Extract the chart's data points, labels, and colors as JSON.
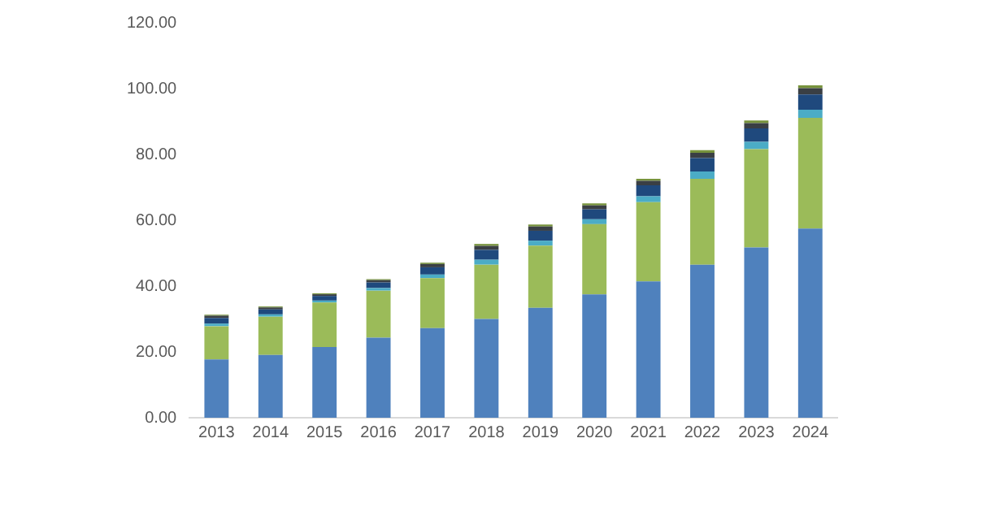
{
  "chart_data": {
    "type": "bar",
    "stacked": true,
    "categories": [
      "2013",
      "2014",
      "2015",
      "2016",
      "2017",
      "2018",
      "2019",
      "2020",
      "2021",
      "2022",
      "2023",
      "2024"
    ],
    "ylim": [
      0,
      120
    ],
    "yticks": [
      {
        "value": 0,
        "label": "0.00"
      },
      {
        "value": 20,
        "label": "20.00"
      },
      {
        "value": 40,
        "label": "40.00"
      },
      {
        "value": 60,
        "label": "60.00"
      },
      {
        "value": 80,
        "label": "80.00"
      },
      {
        "value": 100,
        "label": "100.00"
      },
      {
        "value": 120,
        "label": "120.00"
      }
    ],
    "grid": false,
    "legend": false,
    "series": [
      {
        "color": "#4f81bd",
        "values": [
          17.7,
          19.1,
          21.5,
          24.3,
          27.2,
          30.0,
          33.4,
          37.5,
          41.4,
          46.5,
          51.7,
          57.5
        ]
      },
      {
        "color": "#9bbb59",
        "values": [
          10.1,
          11.6,
          13.5,
          14.3,
          15.2,
          16.5,
          18.9,
          21.3,
          24.1,
          26.1,
          29.9,
          33.6
        ]
      },
      {
        "color": "#4bacc6",
        "values": [
          0.8,
          0.7,
          0.6,
          0.8,
          1.1,
          1.5,
          1.5,
          1.5,
          1.8,
          2.2,
          2.2,
          2.5
        ]
      },
      {
        "color": "#1f497d",
        "values": [
          1.7,
          1.5,
          1.4,
          1.7,
          2.2,
          3.0,
          3.0,
          3.0,
          3.3,
          4.1,
          4.1,
          4.6
        ]
      },
      {
        "color": "#3a3f44",
        "values": [
          0.7,
          0.6,
          0.5,
          0.7,
          1.0,
          1.2,
          1.3,
          1.2,
          1.4,
          1.6,
          1.6,
          1.9
        ]
      },
      {
        "color": "#77933c",
        "values": [
          0.3,
          0.3,
          0.3,
          0.3,
          0.4,
          0.6,
          0.6,
          0.6,
          0.6,
          0.8,
          0.8,
          0.9
        ]
      }
    ]
  }
}
